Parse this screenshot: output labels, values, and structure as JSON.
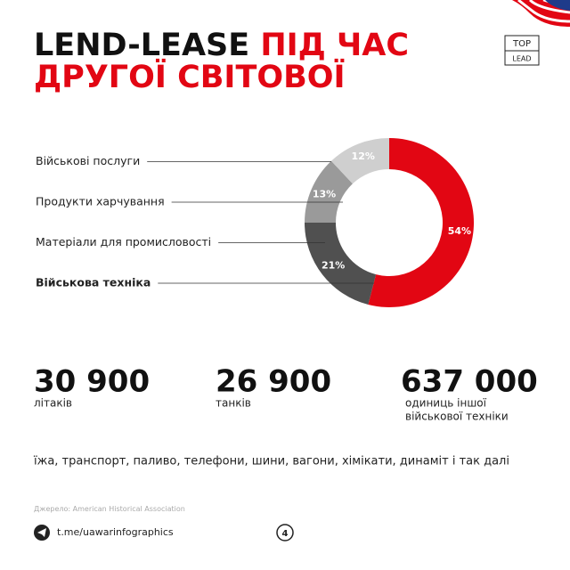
{
  "header": {
    "title_black": "LEND-LEASE",
    "title_red_1": "ПІД ЧАС",
    "title_red_2": "ДРУГОЇ СВІТОВОЇ",
    "logo_top": "TOP",
    "logo_bottom": "LEAD"
  },
  "chart_data": {
    "type": "donut",
    "categories": [
      "Військова техніка",
      "Матеріали для промисловості",
      "Продукти харчування",
      "Військові послуги"
    ],
    "values": [
      54,
      21,
      13,
      12
    ],
    "value_labels": [
      "54%",
      "21%",
      "13%",
      "12%"
    ],
    "colors": [
      "#e20613",
      "#505050",
      "#9a9a9a",
      "#cfcfcf"
    ]
  },
  "stats": [
    {
      "number": "30 900",
      "caption": [
        "літаків"
      ]
    },
    {
      "number": "26 900",
      "caption": [
        "танків"
      ]
    },
    {
      "number": "637 000",
      "caption": [
        "одиниць іншої",
        "військової техніки"
      ]
    }
  ],
  "note": "їжа, транспорт, паливо, телефони, шини, вагони, хімікати, динаміт і так далі",
  "footer": {
    "source_label": "Джерело:",
    "source": "American Historical Association",
    "telegram": "t.me/uawarinfographics",
    "page": "4"
  }
}
